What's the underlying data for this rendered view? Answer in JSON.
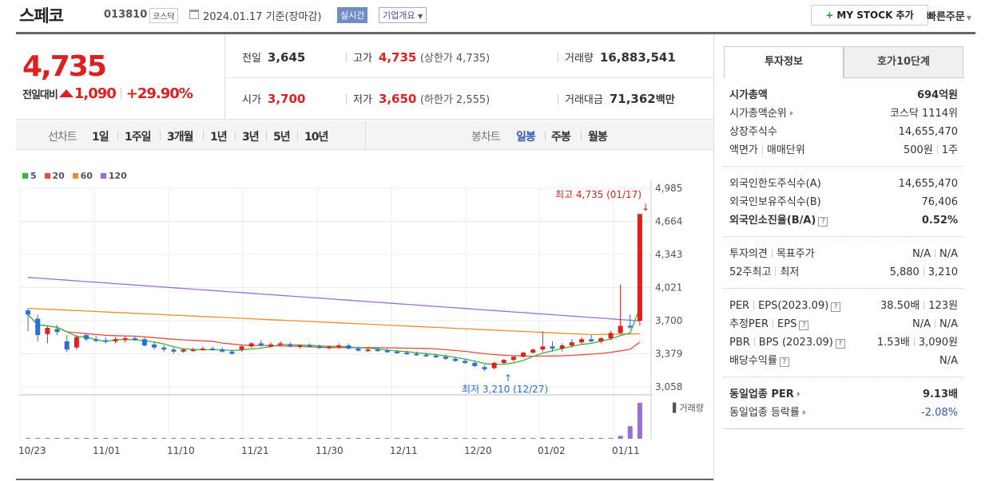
{
  "header": {
    "stock_name": "스페코",
    "stock_code": "013810",
    "market": "코스닥",
    "date_text": "2024.01.17 기준(장마감)",
    "realtime_label": "실시간",
    "corp_info_label": "기업개요",
    "mystock_label": "MY STOCK 추가",
    "quick_order_label": "빠른주문"
  },
  "price": {
    "current": "4,735",
    "change_label": "전일대비",
    "change_value": "1,090",
    "change_percent": "+29.90%",
    "color_up": "#e02020"
  },
  "stats": {
    "prev_close_label": "전일",
    "prev_close": "3,645",
    "high_label": "고가",
    "high": "4,735",
    "upper_limit": "(상한가 4,735)",
    "volume_label": "거래량",
    "volume": "16,883,541",
    "open_label": "시가",
    "open": "3,700",
    "low_label": "저가",
    "low": "3,650",
    "lower_limit": "(하한가 2,555)",
    "amount_label": "거래대금",
    "amount": "71,362",
    "amount_unit": "백만"
  },
  "toolbar": {
    "line_chart_label": "선차트",
    "line_periods": [
      "1일",
      "1주일",
      "3개월",
      "1년",
      "3년",
      "5년",
      "10년"
    ],
    "candle_chart_label": "봉차트",
    "candle_periods": [
      "일봉",
      "주봉",
      "월봉"
    ],
    "selected_candle": "일봉"
  },
  "chart_data": {
    "type": "candlestick",
    "legend": [
      {
        "name": "5",
        "color": "#3cb43c"
      },
      {
        "name": "20",
        "color": "#e84c3d"
      },
      {
        "name": "60",
        "color": "#f08c28"
      },
      {
        "name": "120",
        "color": "#9b6fd0"
      }
    ],
    "y_ticks": [
      "4,985",
      "4,664",
      "4,343",
      "4,021",
      "3,700",
      "3,379",
      "3,058"
    ],
    "ylim": [
      3058,
      4985
    ],
    "x_ticks": [
      "10/23",
      "11/01",
      "11/10",
      "11/21",
      "11/30",
      "12/11",
      "12/20",
      "01/02",
      "01/11"
    ],
    "high_annotation": "최고 4,735 (01/17)",
    "low_annotation": "최저 3,210 (12/27)",
    "volume_label": "거래량",
    "candles": [
      [
        3800,
        3820,
        3600,
        3760
      ],
      [
        3720,
        3760,
        3500,
        3560
      ],
      [
        3570,
        3650,
        3480,
        3630
      ],
      [
        3620,
        3660,
        3560,
        3590
      ],
      [
        3500,
        3560,
        3400,
        3420
      ],
      [
        3440,
        3560,
        3420,
        3540
      ],
      [
        3560,
        3580,
        3500,
        3520
      ],
      [
        3520,
        3550,
        3490,
        3510
      ],
      [
        3510,
        3540,
        3480,
        3500
      ],
      [
        3500,
        3540,
        3480,
        3520
      ],
      [
        3520,
        3550,
        3490,
        3530
      ],
      [
        3530,
        3550,
        3500,
        3520
      ],
      [
        3520,
        3540,
        3450,
        3460
      ],
      [
        3470,
        3490,
        3420,
        3440
      ],
      [
        3440,
        3460,
        3400,
        3420
      ],
      [
        3420,
        3440,
        3380,
        3400
      ],
      [
        3400,
        3430,
        3390,
        3420
      ],
      [
        3410,
        3440,
        3400,
        3420
      ],
      [
        3420,
        3450,
        3410,
        3430
      ],
      [
        3430,
        3450,
        3410,
        3420
      ],
      [
        3420,
        3440,
        3390,
        3400
      ],
      [
        3400,
        3420,
        3370,
        3380
      ],
      [
        3420,
        3460,
        3400,
        3450
      ],
      [
        3450,
        3490,
        3440,
        3480
      ],
      [
        3480,
        3510,
        3450,
        3460
      ],
      [
        3450,
        3490,
        3440,
        3470
      ],
      [
        3470,
        3500,
        3450,
        3480
      ],
      [
        3470,
        3490,
        3440,
        3450
      ],
      [
        3450,
        3470,
        3430,
        3460
      ],
      [
        3460,
        3480,
        3440,
        3450
      ],
      [
        3450,
        3470,
        3430,
        3440
      ],
      [
        3440,
        3460,
        3420,
        3450
      ],
      [
        3450,
        3480,
        3430,
        3460
      ],
      [
        3460,
        3480,
        3420,
        3430
      ],
      [
        3430,
        3450,
        3400,
        3410
      ],
      [
        3410,
        3440,
        3400,
        3420
      ],
      [
        3420,
        3440,
        3400,
        3410
      ],
      [
        3410,
        3430,
        3390,
        3400
      ],
      [
        3400,
        3420,
        3380,
        3390
      ],
      [
        3390,
        3410,
        3370,
        3380
      ],
      [
        3380,
        3400,
        3360,
        3370
      ],
      [
        3370,
        3390,
        3350,
        3360
      ],
      [
        3360,
        3380,
        3340,
        3350
      ],
      [
        3350,
        3370,
        3320,
        3330
      ],
      [
        3330,
        3350,
        3300,
        3310
      ],
      [
        3310,
        3330,
        3280,
        3290
      ],
      [
        3290,
        3310,
        3250,
        3260
      ],
      [
        3250,
        3270,
        3210,
        3230
      ],
      [
        3240,
        3300,
        3230,
        3290
      ],
      [
        3290,
        3330,
        3280,
        3320
      ],
      [
        3320,
        3360,
        3300,
        3350
      ],
      [
        3350,
        3400,
        3340,
        3390
      ],
      [
        3390,
        3430,
        3380,
        3420
      ],
      [
        3420,
        3600,
        3400,
        3450
      ],
      [
        3450,
        3500,
        3400,
        3430
      ],
      [
        3430,
        3480,
        3400,
        3460
      ],
      [
        3460,
        3520,
        3440,
        3490
      ],
      [
        3490,
        3540,
        3470,
        3520
      ],
      [
        3520,
        3560,
        3490,
        3500
      ],
      [
        3500,
        3540,
        3480,
        3530
      ],
      [
        3530,
        3600,
        3510,
        3580
      ],
      [
        3580,
        4050,
        3570,
        3650
      ],
      [
        3650,
        3760,
        3620,
        3645
      ],
      [
        3700,
        4735,
        3650,
        4735
      ]
    ],
    "volumes": [
      0.01,
      0.01,
      0.01,
      0.01,
      0,
      0,
      0,
      0,
      0,
      0,
      0,
      0,
      0,
      0,
      0,
      0,
      0,
      0,
      0,
      0,
      0,
      0,
      0,
      0,
      0,
      0,
      0,
      0,
      0,
      0,
      0,
      0,
      0,
      0,
      0,
      0,
      0,
      0,
      0,
      0,
      0,
      0,
      0,
      0,
      0,
      0,
      0,
      0,
      0,
      0,
      0,
      0,
      0,
      0.03,
      0,
      0,
      0.02,
      0.01,
      0.01,
      0.01,
      0.01,
      0.08,
      0.35,
      1.0
    ]
  },
  "side": {
    "tab_invest": "투자정보",
    "tab_order": "호가10단계",
    "market_cap_label": "시가총액",
    "market_cap": "694억원",
    "market_cap_rank_label": "시가총액순위",
    "market_cap_rank": "코스닥 1114위",
    "listed_shares_label": "상장주식수",
    "listed_shares": "14,655,470",
    "face_value_label": "액면가",
    "trade_unit_label": "매매단위",
    "face_value": "500원",
    "trade_unit": "1주",
    "foreign_limit_label": "외국인한도주식수(A)",
    "foreign_limit": "14,655,470",
    "foreign_hold_label": "외국인보유주식수(B)",
    "foreign_hold": "76,406",
    "foreign_ratio_label": "외국인소진율(B/A)",
    "foreign_ratio": "0.52%",
    "opinion_label": "투자의견",
    "target_label": "목표주가",
    "opinion": "N/A",
    "target": "N/A",
    "w52_high_label": "52주최고",
    "w52_low_label": "최저",
    "w52_high": "5,880",
    "w52_low": "3,210",
    "per_label": "PER",
    "eps_label": "EPS(2023.09)",
    "per": "38.50배",
    "eps": "123원",
    "est_per_label": "추정PER",
    "est_eps_label": "EPS",
    "est_per": "N/A",
    "est_eps": "N/A",
    "pbr_label": "PBR",
    "bps_label": "BPS (2023.09)",
    "pbr": "1.53배",
    "bps": "3,090원",
    "dividend_label": "배당수익률",
    "dividend": "N/A",
    "industry_per_label": "동일업종 PER",
    "industry_per": "9.13배",
    "industry_rate_label": "동일업종 등락률",
    "industry_rate": "-2.08%"
  }
}
